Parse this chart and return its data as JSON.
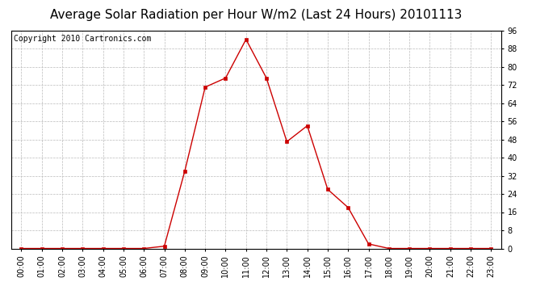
{
  "title": "Average Solar Radiation per Hour W/m2 (Last 24 Hours) 20101113",
  "copyright": "Copyright 2010 Cartronics.com",
  "hours": [
    "00:00",
    "01:00",
    "02:00",
    "03:00",
    "04:00",
    "05:00",
    "06:00",
    "07:00",
    "08:00",
    "09:00",
    "10:00",
    "11:00",
    "12:00",
    "13:00",
    "14:00",
    "15:00",
    "16:00",
    "17:00",
    "18:00",
    "19:00",
    "20:00",
    "21:00",
    "22:00",
    "23:00"
  ],
  "values": [
    0.0,
    0.0,
    0.0,
    0.0,
    0.0,
    0.0,
    0.0,
    1.0,
    34.0,
    71.0,
    75.0,
    92.0,
    75.0,
    47.0,
    54.0,
    26.0,
    18.0,
    2.0,
    0.0,
    0.0,
    0.0,
    0.0,
    0.0,
    0.0
  ],
  "ymin": 0.0,
  "ymax": 96.0,
  "ytick_step": 8.0,
  "line_color": "#cc0000",
  "marker": "s",
  "marker_size": 2.5,
  "bg_color": "#ffffff",
  "plot_bg_color": "#ffffff",
  "grid_color": "#bbbbbb",
  "title_fontsize": 11,
  "tick_fontsize": 7,
  "copyright_fontsize": 7
}
